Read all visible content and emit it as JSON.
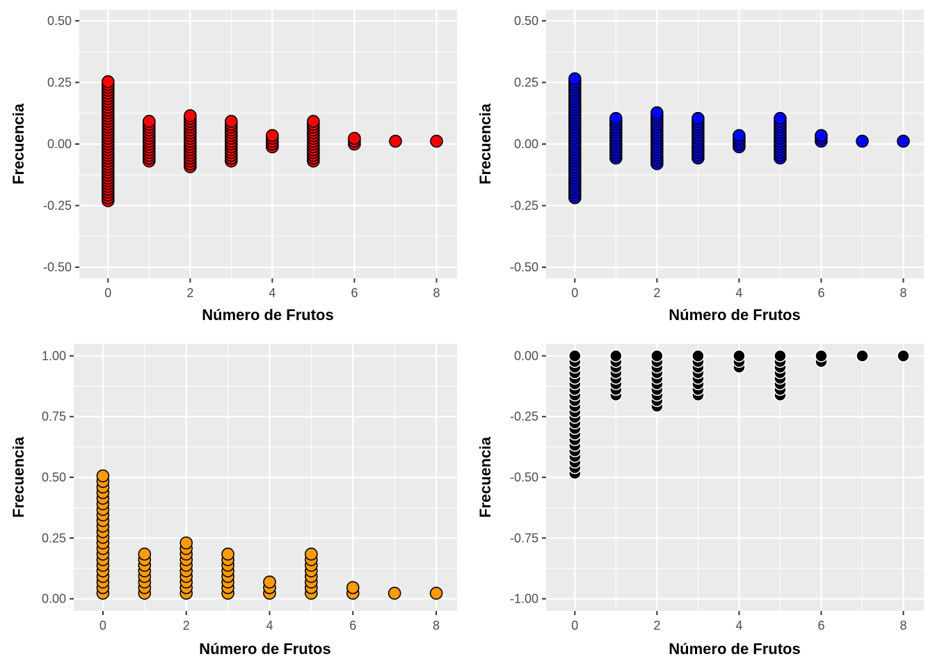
{
  "chart_data": [
    {
      "type": "scatter",
      "xlabel": "Número de Frutos",
      "ylabel": "Frecuencia",
      "xlim": [
        -0.7,
        8.5
      ],
      "ylim": [
        -0.545,
        0.545
      ],
      "xticks": [
        0,
        2,
        4,
        6,
        8
      ],
      "xtick_labels": [
        "0",
        "2",
        "4",
        "6",
        "8"
      ],
      "yticks": [
        -0.5,
        -0.25,
        0,
        0.25,
        0.5
      ],
      "ytick_labels": [
        "-0.50",
        "-0.25",
        "0.00",
        "0.25",
        "0.50"
      ],
      "grid": true,
      "marker": {
        "fill": "#ff0000",
        "stroke": "#000000"
      },
      "stacks": [
        {
          "x": 0,
          "y_min": -0.23,
          "y_max": 0.253,
          "step": 0.0115
        },
        {
          "x": 1,
          "y_min": -0.069,
          "y_max": 0.092,
          "step": 0.0115
        },
        {
          "x": 2,
          "y_min": -0.092,
          "y_max": 0.115,
          "step": 0.0115
        },
        {
          "x": 3,
          "y_min": -0.069,
          "y_max": 0.092,
          "step": 0.0115
        },
        {
          "x": 4,
          "y_min": -0.0115,
          "y_max": 0.0345,
          "step": 0.0115
        },
        {
          "x": 5,
          "y_min": -0.069,
          "y_max": 0.092,
          "step": 0.0115
        },
        {
          "x": 6,
          "y_min": 0.0,
          "y_max": 0.023,
          "step": 0.0115
        },
        {
          "x": 7,
          "y_min": 0.0115,
          "y_max": 0.0115,
          "step": 0.0115
        },
        {
          "x": 8,
          "y_min": 0.0115,
          "y_max": 0.0115,
          "step": 0.0115
        }
      ]
    },
    {
      "type": "scatter",
      "xlabel": "Número de Frutos",
      "ylabel": "Frecuencia",
      "xlim": [
        -0.7,
        8.5
      ],
      "ylim": [
        -0.545,
        0.545
      ],
      "xticks": [
        0,
        2,
        4,
        6,
        8
      ],
      "xtick_labels": [
        "0",
        "2",
        "4",
        "6",
        "8"
      ],
      "yticks": [
        -0.5,
        -0.25,
        0,
        0.25,
        0.5
      ],
      "ytick_labels": [
        "-0.50",
        "-0.25",
        "0.00",
        "0.25",
        "0.50"
      ],
      "grid": true,
      "marker": {
        "fill": "#0000ff",
        "stroke": "#000000"
      },
      "stacks": [
        {
          "x": 0,
          "y_min": -0.218,
          "y_max": 0.264,
          "step": 0.0115
        },
        {
          "x": 1,
          "y_min": -0.057,
          "y_max": 0.103,
          "step": 0.0115
        },
        {
          "x": 2,
          "y_min": -0.08,
          "y_max": 0.126,
          "step": 0.0115
        },
        {
          "x": 3,
          "y_min": -0.057,
          "y_max": 0.103,
          "step": 0.0115
        },
        {
          "x": 4,
          "y_min": -0.0115,
          "y_max": 0.0345,
          "step": 0.0115
        },
        {
          "x": 5,
          "y_min": -0.057,
          "y_max": 0.103,
          "step": 0.0115
        },
        {
          "x": 6,
          "y_min": 0.0115,
          "y_max": 0.0345,
          "step": 0.0115
        },
        {
          "x": 7,
          "y_min": 0.0115,
          "y_max": 0.0115,
          "step": 0.0115
        },
        {
          "x": 8,
          "y_min": 0.0115,
          "y_max": 0.0115,
          "step": 0.0115
        }
      ]
    },
    {
      "type": "scatter",
      "xlabel": "Número de Frutos",
      "ylabel": "Frecuencia",
      "xlim": [
        -0.7,
        8.5
      ],
      "ylim": [
        -0.05,
        1.05
      ],
      "xticks": [
        0,
        2,
        4,
        6,
        8
      ],
      "xtick_labels": [
        "0",
        "2",
        "4",
        "6",
        "8"
      ],
      "yticks": [
        0,
        0.25,
        0.5,
        0.75,
        1.0
      ],
      "ytick_labels": [
        "0.00",
        "0.25",
        "0.50",
        "0.75",
        "1.00"
      ],
      "grid": true,
      "marker": {
        "fill": "#ff9a0a",
        "stroke": "#000000"
      },
      "stacks": [
        {
          "x": 0,
          "y_min": 0.023,
          "y_max": 0.506,
          "step": 0.023
        },
        {
          "x": 1,
          "y_min": 0.023,
          "y_max": 0.184,
          "step": 0.023
        },
        {
          "x": 2,
          "y_min": 0.023,
          "y_max": 0.23,
          "step": 0.023
        },
        {
          "x": 3,
          "y_min": 0.023,
          "y_max": 0.184,
          "step": 0.023
        },
        {
          "x": 4,
          "y_min": 0.023,
          "y_max": 0.069,
          "step": 0.023
        },
        {
          "x": 5,
          "y_min": 0.023,
          "y_max": 0.184,
          "step": 0.023
        },
        {
          "x": 6,
          "y_min": 0.023,
          "y_max": 0.046,
          "step": 0.023
        },
        {
          "x": 7,
          "y_min": 0.023,
          "y_max": 0.023,
          "step": 0.023
        },
        {
          "x": 8,
          "y_min": 0.023,
          "y_max": 0.023,
          "step": 0.023
        }
      ]
    },
    {
      "type": "scatter",
      "xlabel": "Número de Frutos",
      "ylabel": "Frecuencia",
      "xlim": [
        -0.7,
        8.5
      ],
      "ylim": [
        -1.05,
        0.05
      ],
      "xticks": [
        0,
        2,
        4,
        6,
        8
      ],
      "xtick_labels": [
        "0",
        "2",
        "4",
        "6",
        "8"
      ],
      "yticks": [
        -1.0,
        -0.75,
        -0.5,
        -0.25,
        0
      ],
      "ytick_labels": [
        "-1.00",
        "-0.75",
        "-0.50",
        "-0.25",
        "0.00"
      ],
      "grid": true,
      "marker": {
        "fill": "#000000",
        "stroke": "#ffffff"
      },
      "stacks": [
        {
          "x": 0,
          "y_min": -0.483,
          "y_max": 0.0,
          "step": 0.023
        },
        {
          "x": 1,
          "y_min": -0.161,
          "y_max": 0.0,
          "step": 0.023
        },
        {
          "x": 2,
          "y_min": -0.207,
          "y_max": 0.0,
          "step": 0.023
        },
        {
          "x": 3,
          "y_min": -0.161,
          "y_max": 0.0,
          "step": 0.023
        },
        {
          "x": 4,
          "y_min": -0.046,
          "y_max": 0.0,
          "step": 0.023
        },
        {
          "x": 5,
          "y_min": -0.161,
          "y_max": 0.0,
          "step": 0.023
        },
        {
          "x": 6,
          "y_min": -0.023,
          "y_max": 0.0,
          "step": 0.023
        },
        {
          "x": 7,
          "y_min": 0.0,
          "y_max": 0.0,
          "step": 0.023
        },
        {
          "x": 8,
          "y_min": 0.0,
          "y_max": 0.0,
          "step": 0.023
        }
      ]
    }
  ]
}
